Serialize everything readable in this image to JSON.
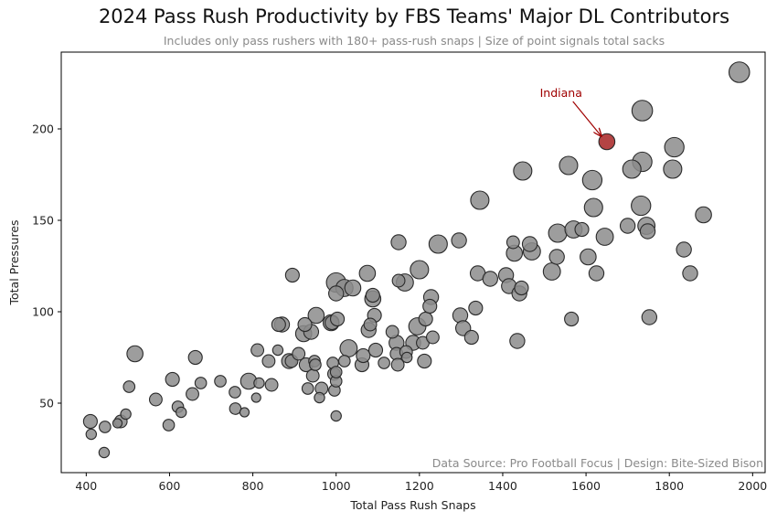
{
  "chart_data": {
    "type": "scatter",
    "title": "2024 Pass Rush Productivity by FBS Teams' Major DL Contributors",
    "subtitle": "Includes only pass rushers with 180+ pass-rush snaps  |  Size of point signals total sacks",
    "xlabel": "Total Pass Rush Snaps",
    "ylabel": "Total Pressures",
    "xlim": [
      340,
      2030
    ],
    "ylim": [
      12,
      242
    ],
    "xticks": [
      400,
      600,
      800,
      1000,
      1200,
      1400,
      1600,
      1800,
      2000
    ],
    "yticks": [
      50,
      100,
      150,
      200
    ],
    "source": "Data Source: Pro Football Focus | Design: Bite-Sized Bison",
    "annotation": {
      "label": "Indiana",
      "x": 1650,
      "y": 193,
      "text_x": 1540,
      "text_y": 216
    },
    "highlight_color": "#b03a3a",
    "point_color": "#8c8c8c",
    "points": [
      [
        410,
        40,
        6
      ],
      [
        412,
        33,
        3
      ],
      [
        445,
        37,
        4
      ],
      [
        443,
        23,
        3
      ],
      [
        475,
        39,
        2
      ],
      [
        483,
        40,
        5
      ],
      [
        495,
        44,
        3
      ],
      [
        503,
        59,
        4
      ],
      [
        517,
        77,
        8
      ],
      [
        567,
        52,
        5
      ],
      [
        598,
        38,
        4
      ],
      [
        607,
        63,
        6
      ],
      [
        620,
        48,
        4
      ],
      [
        628,
        45,
        3
      ],
      [
        655,
        55,
        5
      ],
      [
        662,
        75,
        6
      ],
      [
        675,
        61,
        4
      ],
      [
        722,
        62,
        4
      ],
      [
        757,
        56,
        4
      ],
      [
        758,
        47,
        4
      ],
      [
        780,
        45,
        2
      ],
      [
        790,
        62,
        8
      ],
      [
        808,
        53,
        2
      ],
      [
        811,
        79,
        5
      ],
      [
        815,
        61,
        3
      ],
      [
        838,
        73,
        5
      ],
      [
        845,
        60,
        5
      ],
      [
        860,
        79,
        3
      ],
      [
        862,
        93,
        6
      ],
      [
        870,
        93,
        7
      ],
      [
        887,
        73,
        7
      ],
      [
        893,
        73,
        5
      ],
      [
        895,
        120,
        6
      ],
      [
        910,
        77,
        5
      ],
      [
        922,
        88,
        8
      ],
      [
        925,
        93,
        6
      ],
      [
        928,
        71,
        6
      ],
      [
        932,
        58,
        4
      ],
      [
        940,
        89,
        7
      ],
      [
        944,
        65,
        5
      ],
      [
        948,
        73,
        4
      ],
      [
        950,
        71,
        4
      ],
      [
        952,
        98,
        8
      ],
      [
        960,
        53,
        3
      ],
      [
        965,
        58,
        5
      ],
      [
        988,
        94,
        8
      ],
      [
        990,
        94,
        6
      ],
      [
        992,
        72,
        4
      ],
      [
        995,
        66,
        5
      ],
      [
        996,
        57,
        4
      ],
      [
        1000,
        110,
        7
      ],
      [
        1000,
        116,
        11
      ],
      [
        1000,
        62,
        4
      ],
      [
        1003,
        96,
        6
      ],
      [
        1000,
        67,
        4
      ],
      [
        1000,
        43,
        3
      ],
      [
        1020,
        113,
        9
      ],
      [
        1020,
        73,
        4
      ],
      [
        1030,
        80,
        9
      ],
      [
        1040,
        113,
        8
      ],
      [
        1062,
        71,
        6
      ],
      [
        1065,
        76,
        6
      ],
      [
        1075,
        121,
        8
      ],
      [
        1078,
        90,
        7
      ],
      [
        1082,
        93,
        5
      ],
      [
        1088,
        109,
        6
      ],
      [
        1088,
        107,
        8
      ],
      [
        1092,
        98,
        6
      ],
      [
        1095,
        79,
        6
      ],
      [
        1115,
        72,
        4
      ],
      [
        1135,
        89,
        5
      ],
      [
        1145,
        83,
        7
      ],
      [
        1145,
        77,
        5
      ],
      [
        1148,
        71,
        5
      ],
      [
        1150,
        138,
        7
      ],
      [
        1150,
        117,
        5
      ],
      [
        1165,
        116,
        9
      ],
      [
        1168,
        78,
        5
      ],
      [
        1170,
        75,
        3
      ],
      [
        1185,
        83,
        7
      ],
      [
        1195,
        92,
        9
      ],
      [
        1200,
        123,
        10
      ],
      [
        1208,
        83,
        5
      ],
      [
        1212,
        73,
        6
      ],
      [
        1215,
        96,
        6
      ],
      [
        1225,
        103,
        6
      ],
      [
        1228,
        108,
        7
      ],
      [
        1232,
        86,
        5
      ],
      [
        1245,
        137,
        10
      ],
      [
        1295,
        139,
        7
      ],
      [
        1298,
        98,
        7
      ],
      [
        1305,
        91,
        7
      ],
      [
        1325,
        86,
        6
      ],
      [
        1335,
        102,
        6
      ],
      [
        1340,
        121,
        7
      ],
      [
        1345,
        161,
        10
      ],
      [
        1370,
        118,
        7
      ],
      [
        1408,
        120,
        7
      ],
      [
        1415,
        114,
        7
      ],
      [
        1425,
        138,
        5
      ],
      [
        1428,
        132,
        8
      ],
      [
        1435,
        84,
        7
      ],
      [
        1440,
        110,
        7
      ],
      [
        1445,
        113,
        6
      ],
      [
        1448,
        177,
        10
      ],
      [
        1465,
        137,
        7
      ],
      [
        1470,
        133,
        9
      ],
      [
        1518,
        122,
        9
      ],
      [
        1530,
        130,
        7
      ],
      [
        1532,
        143,
        10
      ],
      [
        1558,
        180,
        10
      ],
      [
        1565,
        96,
        6
      ],
      [
        1570,
        145,
        9
      ],
      [
        1590,
        145,
        6
      ],
      [
        1605,
        130,
        8
      ],
      [
        1615,
        172,
        11
      ],
      [
        1618,
        157,
        10
      ],
      [
        1625,
        121,
        7
      ],
      [
        1645,
        141,
        9
      ],
      [
        1650,
        193,
        8,
        "Indiana"
      ],
      [
        1700,
        147,
        7
      ],
      [
        1710,
        178,
        10
      ],
      [
        1732,
        158,
        11
      ],
      [
        1735,
        182,
        11
      ],
      [
        1735,
        210,
        12
      ],
      [
        1745,
        147,
        9
      ],
      [
        1748,
        144,
        7
      ],
      [
        1752,
        97,
        7
      ],
      [
        1808,
        178,
        10
      ],
      [
        1812,
        190,
        11
      ],
      [
        1835,
        134,
        7
      ],
      [
        1850,
        121,
        7
      ],
      [
        1882,
        153,
        8
      ],
      [
        1968,
        231,
        12
      ]
    ]
  }
}
